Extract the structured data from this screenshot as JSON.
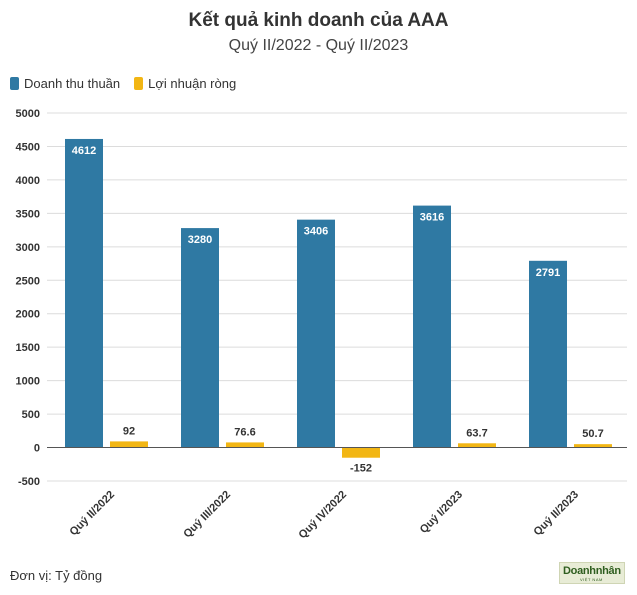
{
  "header": {
    "title": "Kết quả kinh doanh của AAA",
    "subtitle": "Quý II/2022 - Quý II/2023"
  },
  "footer": {
    "unit_note": "Đơn vị: Tỷ đồng",
    "logo_text": "Doanhnhân",
    "logo_subtext": "VIỆT NAM"
  },
  "colors": {
    "revenue": "#2f79a3",
    "profit": "#f2b614",
    "grid": "#dcdcdc",
    "zero_line": "#555555"
  },
  "chart_data": {
    "type": "bar",
    "categories": [
      "Quý II/2022",
      "Quý III/2022",
      "Quý IV/2022",
      "Quý I/2023",
      "Quý II/2023"
    ],
    "series": [
      {
        "name": "Doanh thu thuần",
        "values": [
          4612,
          3280,
          3406,
          3616,
          2791
        ],
        "labels": [
          "4612",
          "3280",
          "3406",
          "3616",
          "2791"
        ]
      },
      {
        "name": "Lợi nhuận ròng",
        "values": [
          92,
          76.6,
          -152,
          63.7,
          50.7
        ],
        "labels": [
          "92",
          "76.6",
          "-152",
          "63.7",
          "50.7"
        ]
      }
    ],
    "ylim": [
      -500,
      5000
    ],
    "yticks": [
      5000,
      4500,
      4000,
      3500,
      3000,
      2500,
      2000,
      1500,
      1000,
      500,
      0,
      -500
    ],
    "grid": true,
    "legend_position": "top-left"
  }
}
